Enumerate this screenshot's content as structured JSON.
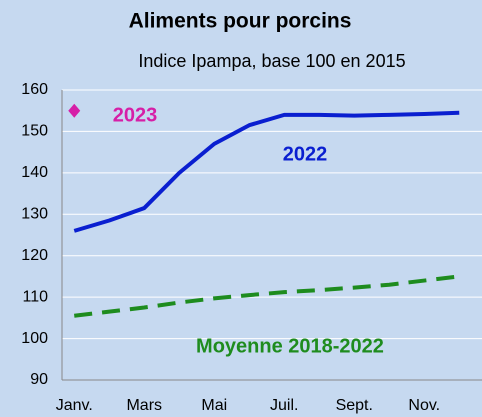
{
  "chart_data": {
    "type": "line",
    "title": "Aliments pour porcins",
    "subtitle": "Indice Ipampa, base 100 en 2015",
    "categories": [
      "Janv.",
      null,
      "Mars",
      null,
      "Mai",
      null,
      "Juil.",
      null,
      "Sept.",
      null,
      "Nov.",
      null
    ],
    "series": [
      {
        "name": "2023",
        "color": "#d61fa7",
        "values": [
          155,
          null,
          null,
          null,
          null,
          null,
          null,
          null,
          null,
          null,
          null,
          null
        ]
      },
      {
        "name": "2022",
        "color": "#0a1fd0",
        "values": [
          126,
          128.5,
          131.5,
          140,
          147,
          151.5,
          154,
          154,
          153.8,
          154,
          154.2,
          154.5
        ]
      },
      {
        "name": "Moyenne 2018-2022",
        "color": "#1e8c1e",
        "values": [
          105.5,
          106.5,
          107.5,
          108.7,
          109.7,
          110.5,
          111.2,
          111.7,
          112.3,
          113,
          114,
          115
        ]
      }
    ],
    "ylim": [
      90,
      160
    ],
    "yticks": [
      90,
      100,
      110,
      120,
      130,
      140,
      150,
      160
    ],
    "grid": true
  }
}
